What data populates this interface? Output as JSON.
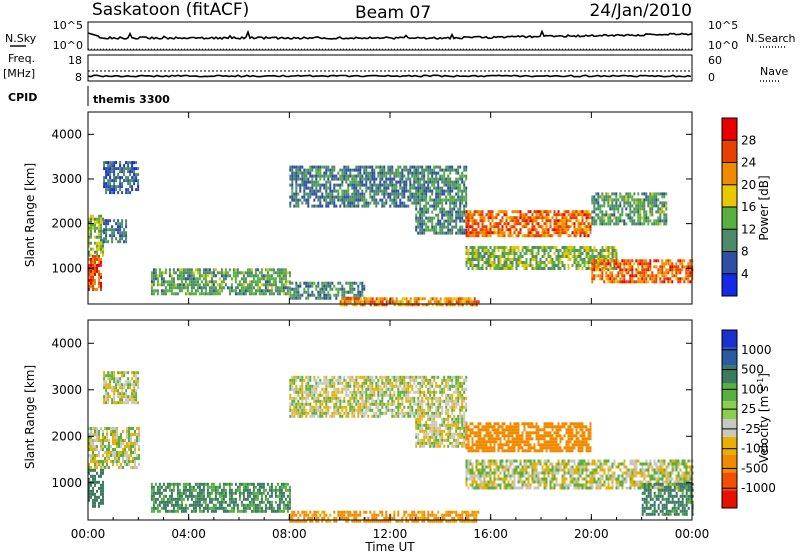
{
  "header": {
    "title": "Saskatoon (fitACF)",
    "beam": "Beam 07",
    "date": "24/Jan/2010"
  },
  "noise_panel": {
    "left_label": "N.Sky",
    "right_label": "N.Search",
    "left_ticks": [
      "10^5",
      "10^0"
    ],
    "right_ticks": [
      "10^5",
      "10^0"
    ]
  },
  "freq_panel": {
    "left_label_1": "Freq.",
    "left_label_2": "[MHz]",
    "right_label": "Nave",
    "left_ticks": [
      "18",
      "8"
    ],
    "right_ticks": [
      "60",
      "0"
    ]
  },
  "cpid": {
    "label": "CPID",
    "value": "themis 3300"
  },
  "x_ticks": [
    "00:00",
    "04:00",
    "08:00",
    "12:00",
    "16:00",
    "20:00",
    "00:00"
  ],
  "x_label": "Time UT",
  "y_label": "Slant Range [km]",
  "y_ticks": [
    "1000",
    "2000",
    "3000",
    "4000"
  ],
  "power_colorbar": {
    "label": "Power [dB]",
    "ticks": [
      "4",
      "8",
      "12",
      "16",
      "20",
      "24",
      "28"
    ],
    "colors": [
      "#1428e6",
      "#2f4ea6",
      "#4d8a6a",
      "#58b040",
      "#e8c800",
      "#f08a00",
      "#e84000",
      "#e80000"
    ]
  },
  "velocity_colorbar": {
    "label": "Velocity [m s^-1]",
    "ticks": [
      "1000",
      "500",
      "100",
      "25",
      "-25",
      "-100",
      "-500",
      "-1000"
    ],
    "colors": [
      "#1a30d0",
      "#2a5aa0",
      "#3a7a60",
      "#58b040",
      "#8ad050",
      "#c8c8c0",
      "#e8b000",
      "#f08a00",
      "#f05000",
      "#e81000"
    ]
  },
  "chart_data": [
    {
      "type": "heatmap",
      "title": "Power",
      "xlabel": "Time UT",
      "ylabel": "Slant Range [km]",
      "xlim": [
        0,
        24
      ],
      "ylim": [
        200,
        4500
      ],
      "colorbar_label": "Power [dB]",
      "regions": [
        {
          "t": [
            0.0,
            0.5
          ],
          "r": [
            500,
            1300
          ],
          "v": 26
        },
        {
          "t": [
            0.0,
            0.6
          ],
          "r": [
            1300,
            2200
          ],
          "v": 14
        },
        {
          "t": [
            0.6,
            1.5
          ],
          "r": [
            1600,
            2100
          ],
          "v": 8
        },
        {
          "t": [
            0.6,
            2.0
          ],
          "r": [
            2700,
            3400
          ],
          "v": 7
        },
        {
          "t": [
            2.5,
            8.0
          ],
          "r": [
            400,
            1000
          ],
          "v": 12
        },
        {
          "t": [
            8.0,
            11.0
          ],
          "r": [
            300,
            700
          ],
          "v": 10
        },
        {
          "t": [
            10.0,
            15.5
          ],
          "r": [
            200,
            350
          ],
          "v": 22
        },
        {
          "t": [
            8.0,
            13.0
          ],
          "r": [
            2400,
            3300
          ],
          "v": 9
        },
        {
          "t": [
            13.0,
            15.0
          ],
          "r": [
            1800,
            3300
          ],
          "v": 10
        },
        {
          "t": [
            15.0,
            20.0
          ],
          "r": [
            1700,
            2300
          ],
          "v": 24
        },
        {
          "t": [
            15.0,
            21.0
          ],
          "r": [
            1000,
            1500
          ],
          "v": 14
        },
        {
          "t": [
            20.0,
            24.0
          ],
          "r": [
            700,
            1200
          ],
          "v": 24
        },
        {
          "t": [
            20.0,
            23.0
          ],
          "r": [
            2000,
            2700
          ],
          "v": 12
        }
      ]
    },
    {
      "type": "heatmap",
      "title": "Velocity",
      "xlabel": "Time UT",
      "ylabel": "Slant Range [km]",
      "xlim": [
        0,
        24
      ],
      "ylim": [
        200,
        4500
      ],
      "colorbar_label": "Velocity [m s^-1]",
      "regions": [
        {
          "t": [
            0.0,
            0.6
          ],
          "r": [
            500,
            1300
          ],
          "v": 200
        },
        {
          "t": [
            0.0,
            2.0
          ],
          "r": [
            1300,
            2200
          ],
          "v": 0
        },
        {
          "t": [
            0.6,
            2.0
          ],
          "r": [
            2700,
            3400
          ],
          "v": 0
        },
        {
          "t": [
            2.5,
            8.0
          ],
          "r": [
            400,
            1000
          ],
          "v": 120
        },
        {
          "t": [
            8.0,
            15.5
          ],
          "r": [
            200,
            400
          ],
          "v": -150
        },
        {
          "t": [
            8.0,
            13.0
          ],
          "r": [
            2400,
            3300
          ],
          "v": 0
        },
        {
          "t": [
            13.0,
            15.0
          ],
          "r": [
            1800,
            3300
          ],
          "v": 0
        },
        {
          "t": [
            15.0,
            20.0
          ],
          "r": [
            1700,
            2300
          ],
          "v": -200
        },
        {
          "t": [
            15.0,
            24.0
          ],
          "r": [
            900,
            1500
          ],
          "v": 0
        },
        {
          "t": [
            22.0,
            24.0
          ],
          "r": [
            300,
            1000
          ],
          "v": 150
        }
      ]
    }
  ]
}
